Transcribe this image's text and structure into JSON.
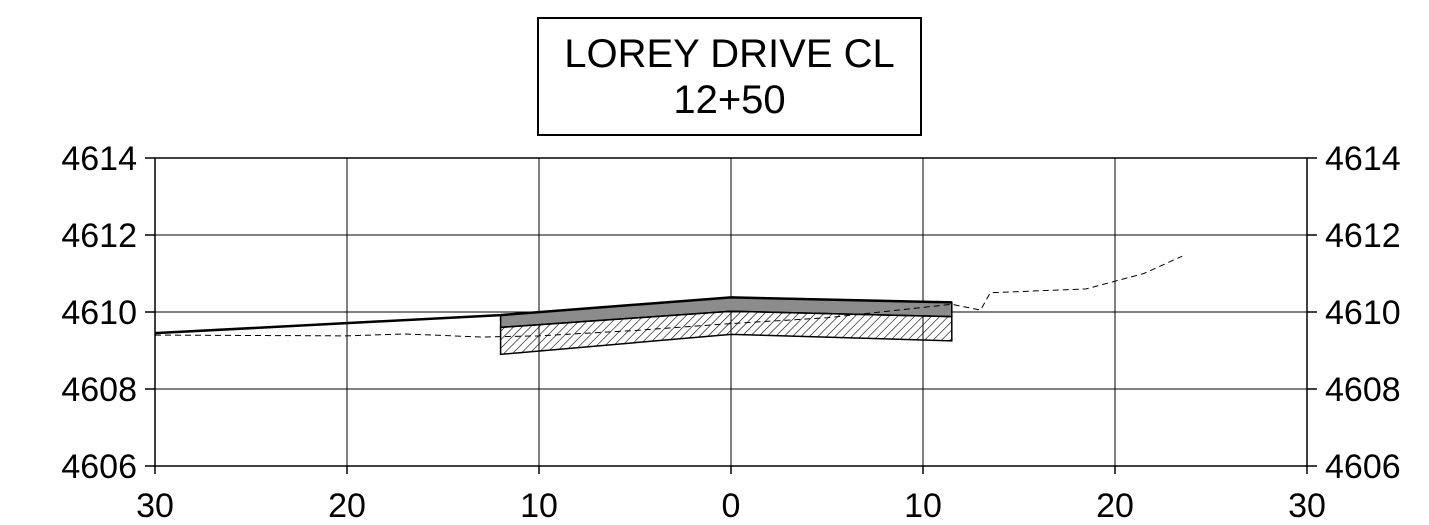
{
  "title": {
    "line1": "LOREY DRIVE CL",
    "line2": "12+50"
  },
  "colors": {
    "line": "#000000",
    "pavement_fill": "#8c8c8c",
    "hatch": "#000000",
    "background": "#ffffff"
  },
  "chart_data": {
    "type": "line",
    "x_range": [
      -30,
      30
    ],
    "y_range": [
      4606,
      4614
    ],
    "grid": true,
    "x_tick_values": [
      -30,
      -20,
      -10,
      0,
      10,
      20,
      30
    ],
    "x_tick_labels": [
      "30",
      "20",
      "10",
      "0",
      "10",
      "20",
      "30"
    ],
    "y_tick_labels": [
      "4614",
      "4612",
      "4610",
      "4608",
      "4606"
    ],
    "y_ticks": [
      4614,
      4612,
      4610,
      4608,
      4606
    ],
    "series": [
      {
        "style": "solid",
        "points": [
          [
            -30,
            4609.45
          ],
          [
            -12,
            4609.92
          ],
          [
            0,
            4610.38
          ],
          [
            11.5,
            4610.25
          ]
        ]
      },
      {
        "style": "dashed",
        "points": [
          [
            -30,
            4609.4
          ],
          [
            -20,
            4609.38
          ],
          [
            -17,
            4609.43
          ],
          [
            -13,
            4609.35
          ],
          [
            -10,
            4609.38
          ],
          [
            -5,
            4609.52
          ],
          [
            0,
            4609.7
          ],
          [
            5,
            4609.85
          ],
          [
            11.5,
            4610.2
          ],
          [
            13,
            4610.05
          ],
          [
            13.5,
            4610.5
          ],
          [
            18.5,
            4610.6
          ],
          [
            21.5,
            4611.0
          ],
          [
            23.5,
            4611.45
          ]
        ]
      }
    ],
    "layers": [
      {
        "fill": "solid-gray",
        "points": [
          [
            -12,
            4609.92
          ],
          [
            0,
            4610.38
          ],
          [
            11.5,
            4610.25
          ],
          [
            11.5,
            4609.88
          ],
          [
            0,
            4610.02
          ],
          [
            -12,
            4609.6
          ]
        ]
      },
      {
        "fill": "hatched",
        "points": [
          [
            -12,
            4609.6
          ],
          [
            0,
            4610.02
          ],
          [
            11.5,
            4609.88
          ],
          [
            11.5,
            4609.25
          ],
          [
            0,
            4609.42
          ],
          [
            -12,
            4608.9
          ]
        ]
      }
    ]
  }
}
